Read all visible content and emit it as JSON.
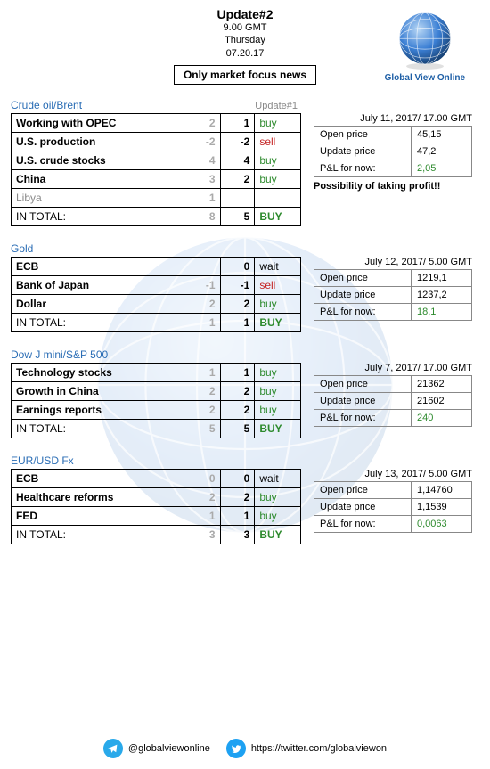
{
  "header": {
    "title": "Update#2",
    "time": "9.00 GMT",
    "day": "Thursday",
    "date": "07.20.17",
    "logo_text": "Global View Online"
  },
  "badge": "Only market focus news",
  "update_label": "Update#1",
  "colors": {
    "buy": "#2d8a2d",
    "sell": "#c42323",
    "wait": "#000000",
    "muted": "#aaaaaa",
    "accent": "#2a6db5",
    "border": "#000000",
    "price_border": "#888888",
    "social_twitter": "#1da1f2",
    "social_telegram": "#29a9ea",
    "globe_main": "#3b7fd4",
    "globe_dark": "#1e5fa6"
  },
  "action_labels": {
    "buy": "buy",
    "sell": "sell",
    "wait": "wait",
    "buy_big": "BUY"
  },
  "sections": [
    {
      "title": "Crude oil/Brent",
      "show_update_label": true,
      "rows": [
        {
          "label": "Working with OPEC",
          "v1": "2",
          "v2": "1",
          "action": "buy"
        },
        {
          "label": "U.S. production",
          "v1": "-2",
          "v2": "-2",
          "action": "sell"
        },
        {
          "label": "U.S. crude stocks",
          "v1": "4",
          "v2": "4",
          "action": "buy"
        },
        {
          "label": "China",
          "v1": "3",
          "v2": "2",
          "action": "buy"
        },
        {
          "label": "Libya",
          "v1": "1",
          "v2": "",
          "action": "",
          "muted": true
        }
      ],
      "total": {
        "label": "IN TOTAL:",
        "v1": "8",
        "v2": "5",
        "action": "BUY"
      },
      "price": {
        "date": "July 11, 2017/ 17.00 GMT",
        "rows": [
          {
            "k": "Open price",
            "v": "45,15"
          },
          {
            "k": "Update price",
            "v": "47,2"
          },
          {
            "k": "P&L for now:",
            "v": "2,05",
            "green": true
          }
        ],
        "note": "Possibility of taking profit!!"
      }
    },
    {
      "title": "Gold",
      "rows": [
        {
          "label": "ECB",
          "v1": "",
          "v2": "0",
          "action": "wait"
        },
        {
          "label": "Bank of Japan",
          "v1": "-1",
          "v2": "-1",
          "action": "sell"
        },
        {
          "label": "Dollar",
          "v1": "2",
          "v2": "2",
          "action": "buy"
        }
      ],
      "total": {
        "label": "IN TOTAL:",
        "v1": "1",
        "v2": "1",
        "action": "BUY"
      },
      "price": {
        "date": "July 12, 2017/ 5.00 GMT",
        "rows": [
          {
            "k": "Open price",
            "v": "1219,1"
          },
          {
            "k": "Update price",
            "v": "1237,2"
          },
          {
            "k": "P&L for now:",
            "v": "18,1",
            "green": true
          }
        ]
      }
    },
    {
      "title": "Dow J mini/S&P 500",
      "rows": [
        {
          "label": "Technology stocks",
          "v1": "1",
          "v2": "1",
          "action": "buy"
        },
        {
          "label": "Growth in China",
          "v1": "2",
          "v2": "2",
          "action": "buy"
        },
        {
          "label": "Earnings reports",
          "v1": "2",
          "v2": "2",
          "action": "buy"
        }
      ],
      "total": {
        "label": "IN TOTAL:",
        "v1": "5",
        "v2": "5",
        "action": "BUY"
      },
      "price": {
        "date": "July 7, 2017/ 17.00 GMT",
        "rows": [
          {
            "k": "Open price",
            "v": "21362"
          },
          {
            "k": "Update price",
            "v": "21602"
          },
          {
            "k": "P&L for now:",
            "v": "240",
            "green": true
          }
        ]
      }
    },
    {
      "title": "EUR/USD Fx",
      "rows": [
        {
          "label": "ECB",
          "v1": "0",
          "v2": "0",
          "action": "wait"
        },
        {
          "label": "Healthcare reforms",
          "v1": "2",
          "v2": "2",
          "action": "buy"
        },
        {
          "label": "FED",
          "v1": "1",
          "v2": "1",
          "action": "buy"
        }
      ],
      "total": {
        "label": "IN TOTAL:",
        "v1": "3",
        "v2": "3",
        "action": "BUY"
      },
      "price": {
        "date": "July 13, 2017/ 5.00 GMT",
        "rows": [
          {
            "k": "Open price",
            "v": "1,14760"
          },
          {
            "k": "Update price",
            "v": "1,1539"
          },
          {
            "k": "P&L for now:",
            "v": "0,0063",
            "green": true
          }
        ]
      }
    }
  ],
  "footer": {
    "telegram": "@globalviewonline",
    "twitter": "https://twitter.com/globalviewon"
  }
}
